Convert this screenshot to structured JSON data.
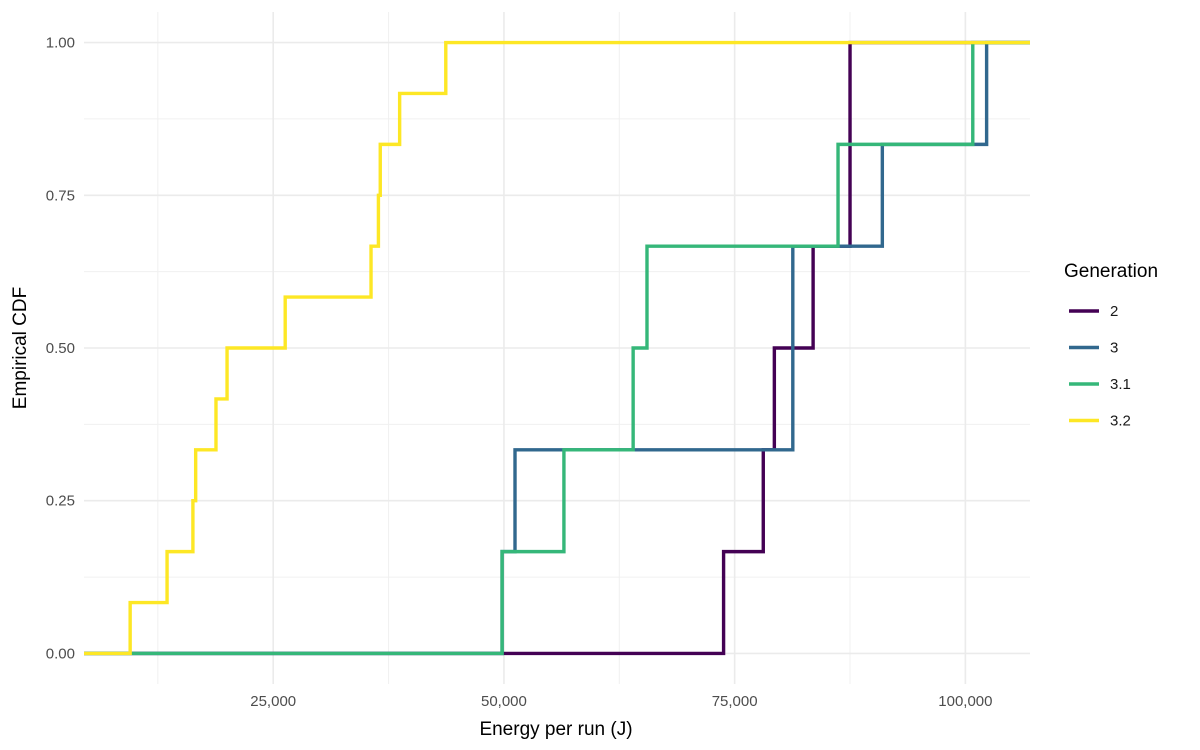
{
  "chart_data": {
    "type": "line",
    "subtype": "step-ecdf",
    "title": "",
    "xlabel": "Energy per run (J)",
    "ylabel": "Empirical CDF",
    "xlim": [
      4500,
      107000
    ],
    "ylim": [
      -0.05,
      1.05
    ],
    "x_ticks": [
      25000,
      50000,
      75000,
      100000
    ],
    "x_tick_labels": [
      "25,000",
      "50,000",
      "75,000",
      "100,000"
    ],
    "y_ticks": [
      0,
      0.25,
      0.5,
      0.75,
      1
    ],
    "y_tick_labels": [
      "0.00",
      "0.25",
      "0.50",
      "0.75",
      "1.00"
    ],
    "grid": true,
    "legend": {
      "title": "Generation",
      "position": "right"
    },
    "series": [
      {
        "name": "2",
        "color": "#440154",
        "x": [
          73800,
          78100,
          79300,
          83500,
          87500,
          87500
        ],
        "y": [
          0.1667,
          0.3333,
          0.5,
          0.6667,
          0.8333,
          1.0
        ]
      },
      {
        "name": "3",
        "color": "#31688E",
        "x": [
          49800,
          51200,
          81300,
          81300,
          91000,
          102300
        ],
        "y": [
          0.1667,
          0.3333,
          0.5,
          0.6667,
          0.8333,
          1.0
        ]
      },
      {
        "name": "3.1",
        "color": "#35B779",
        "x": [
          49800,
          56500,
          64000,
          65500,
          86200,
          100800
        ],
        "y": [
          0.1667,
          0.3333,
          0.5,
          0.6667,
          0.8333,
          1.0
        ]
      },
      {
        "name": "3.2",
        "color": "#FDE725",
        "x": [
          9500,
          13500,
          16300,
          16600,
          18800,
          20000,
          26300,
          35600,
          36400,
          36600,
          38700,
          43700
        ],
        "y": [
          0.0833,
          0.1667,
          0.25,
          0.3333,
          0.4167,
          0.5,
          0.5833,
          0.6667,
          0.75,
          0.8333,
          0.9167,
          1.0
        ]
      }
    ]
  }
}
